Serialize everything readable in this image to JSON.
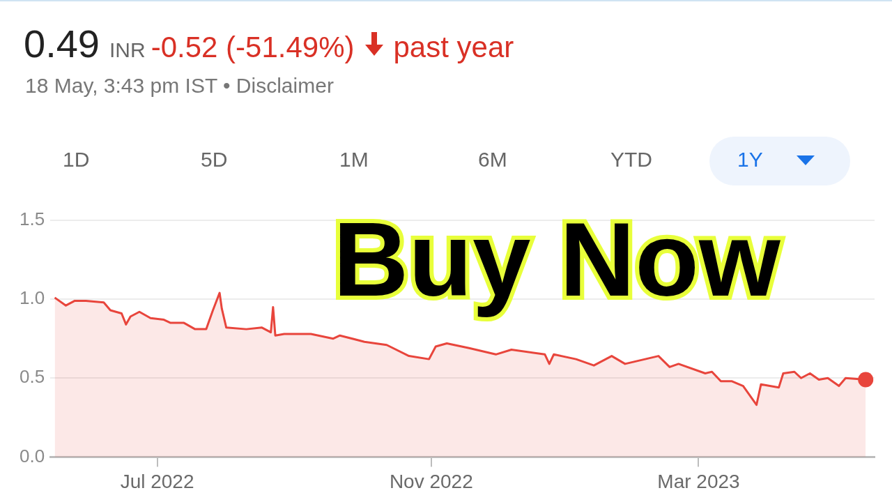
{
  "chart_data": {
    "type": "area",
    "title": "0.49",
    "subtitle": "18 May, 3:43 pm IST • Disclaimer",
    "annotations": [
      "INR",
      "-0.52 (-51.49%)",
      "past year",
      "1D",
      "5D",
      "1M",
      "6M",
      "YTD",
      "1Y",
      "Buy Now"
    ],
    "x": [
      "2022-05-16",
      "2022-05-21",
      "2022-05-25",
      "2022-05-30",
      "2022-06-07",
      "2022-06-10",
      "2022-06-15",
      "2022-06-17",
      "2022-06-19",
      "2022-06-23",
      "2022-06-28",
      "2022-07-04",
      "2022-07-07",
      "2022-07-13",
      "2022-07-18",
      "2022-07-23",
      "2022-07-26",
      "2022-07-29",
      "2022-07-30",
      "2022-08-01",
      "2022-08-10",
      "2022-08-17",
      "2022-08-21",
      "2022-08-22",
      "2022-08-23",
      "2022-08-27",
      "2022-09-08",
      "2022-09-18",
      "2022-09-21",
      "2022-10-02",
      "2022-10-12",
      "2022-10-22",
      "2022-10-31",
      "2022-11-03",
      "2022-11-08",
      "2022-11-18",
      "2022-11-30",
      "2022-12-07",
      "2022-12-22",
      "2022-12-24",
      "2022-12-26",
      "2023-01-05",
      "2023-01-13",
      "2023-01-21",
      "2023-01-27",
      "2023-02-05",
      "2023-02-11",
      "2023-02-16",
      "2023-02-20",
      "2023-03-04",
      "2023-03-07",
      "2023-03-11",
      "2023-03-16",
      "2023-03-21",
      "2023-03-27",
      "2023-03-29",
      "2023-04-06",
      "2023-04-08",
      "2023-04-13",
      "2023-04-16",
      "2023-04-20",
      "2023-04-24",
      "2023-04-28",
      "2023-05-03",
      "2023-05-06",
      "2023-05-15"
    ],
    "series": [
      {
        "color": "#e8453c",
        "values": [
          1.01,
          0.96,
          0.99,
          0.99,
          0.98,
          0.93,
          0.91,
          0.84,
          0.89,
          0.92,
          0.88,
          0.87,
          0.85,
          0.85,
          0.81,
          0.81,
          0.93,
          1.04,
          0.94,
          0.82,
          0.81,
          0.82,
          0.79,
          0.95,
          0.77,
          0.78,
          0.78,
          0.75,
          0.77,
          0.73,
          0.71,
          0.64,
          0.62,
          0.7,
          0.72,
          0.69,
          0.65,
          0.68,
          0.65,
          0.59,
          0.65,
          0.62,
          0.58,
          0.64,
          0.59,
          0.62,
          0.64,
          0.57,
          0.59,
          0.53,
          0.54,
          0.48,
          0.48,
          0.45,
          0.33,
          0.46,
          0.44,
          0.53,
          0.54,
          0.5,
          0.53,
          0.49,
          0.5,
          0.45,
          0.5,
          0.49
        ]
      }
    ],
    "xlim": [
      "2022-05-14",
      "2023-05-19"
    ],
    "xticks": [
      {
        "value": "2022-07-01",
        "label": "Jul 2022"
      },
      {
        "value": "2022-11-01",
        "label": "Nov 2022"
      },
      {
        "value": "2023-03-01",
        "label": "Mar 2023"
      }
    ],
    "ylim": [
      0,
      1.5
    ],
    "yticks": [
      {
        "value": 0,
        "label": "0.0"
      },
      {
        "value": 0.5,
        "label": "0.5"
      },
      {
        "value": 1,
        "label": "1.0"
      },
      {
        "value": 1.5,
        "label": "1.5"
      }
    ],
    "grid": "y",
    "legend": false
  }
}
